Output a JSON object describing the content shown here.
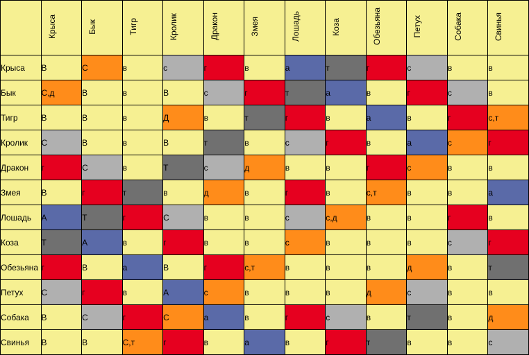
{
  "table": {
    "type": "heatmap",
    "row_headers": [
      "Крыса",
      "Бык",
      "Тигр",
      "Кролик",
      "Дракон",
      "Змея",
      "Лошадь",
      "Коза",
      "Обезьяна",
      "Петух",
      "Собака",
      "Свинья"
    ],
    "col_headers": [
      "Крыса",
      "Бык",
      "Тигр",
      "Кролик",
      "Дракон",
      "Змея",
      "Лошадь",
      "Коза",
      "Обезьяна",
      "Петух",
      "Собака",
      "Свинья"
    ],
    "header_bg": "#f6f092",
    "header_font_size": 13,
    "cell_font_size": 12,
    "border_color": "#000000",
    "colors": {
      "y": "#f6f092",
      "o": "#ff8c1a",
      "r": "#e6001f",
      "g": "#b0b0b0",
      "b": "#5a6aa8",
      "dg": "#707070"
    },
    "cells": [
      [
        [
          "В",
          "y"
        ],
        [
          "С",
          "o"
        ],
        [
          "в",
          "y"
        ],
        [
          "с",
          "g"
        ],
        [
          "г",
          "r"
        ],
        [
          "в",
          "y"
        ],
        [
          "а",
          "b"
        ],
        [
          "т",
          "dg"
        ],
        [
          "г",
          "r"
        ],
        [
          "с",
          "g"
        ],
        [
          "в",
          "y"
        ],
        [
          "в",
          "y"
        ]
      ],
      [
        [
          "С,д",
          "o"
        ],
        [
          "В",
          "y"
        ],
        [
          "в",
          "y"
        ],
        [
          "В",
          "y"
        ],
        [
          "с",
          "g"
        ],
        [
          "г",
          "r"
        ],
        [
          "т",
          "dg"
        ],
        [
          "а",
          "b"
        ],
        [
          "в",
          "y"
        ],
        [
          "г",
          "r"
        ],
        [
          "с",
          "g"
        ],
        [
          "в",
          "y"
        ]
      ],
      [
        [
          "В",
          "y"
        ],
        [
          "В",
          "y"
        ],
        [
          "в",
          "y"
        ],
        [
          "Д",
          "o"
        ],
        [
          "в",
          "y"
        ],
        [
          "т",
          "dg"
        ],
        [
          "г",
          "r"
        ],
        [
          "в",
          "y"
        ],
        [
          "а",
          "b"
        ],
        [
          "в",
          "y"
        ],
        [
          "г",
          "r"
        ],
        [
          "с,т",
          "o"
        ]
      ],
      [
        [
          "С",
          "g"
        ],
        [
          "В",
          "y"
        ],
        [
          "в",
          "y"
        ],
        [
          "В",
          "y"
        ],
        [
          "т",
          "dg"
        ],
        [
          "в",
          "y"
        ],
        [
          "с",
          "g"
        ],
        [
          "г",
          "r"
        ],
        [
          "в",
          "y"
        ],
        [
          "а",
          "b"
        ],
        [
          "с",
          "o"
        ],
        [
          "г",
          "r"
        ]
      ],
      [
        [
          "г",
          "r"
        ],
        [
          "С",
          "g"
        ],
        [
          "в",
          "y"
        ],
        [
          "Т",
          "dg"
        ],
        [
          "с",
          "g"
        ],
        [
          "д",
          "o"
        ],
        [
          "в",
          "y"
        ],
        [
          "в",
          "y"
        ],
        [
          "г",
          "r"
        ],
        [
          "с",
          "o"
        ],
        [
          "в",
          "y"
        ],
        [
          "в",
          "y"
        ]
      ],
      [
        [
          "В",
          "y"
        ],
        [
          "г",
          "r"
        ],
        [
          "т",
          "dg"
        ],
        [
          "в",
          "y"
        ],
        [
          "д",
          "o"
        ],
        [
          "в",
          "y"
        ],
        [
          "г",
          "r"
        ],
        [
          "в",
          "y"
        ],
        [
          "с,т",
          "o"
        ],
        [
          "в",
          "y"
        ],
        [
          "в",
          "y"
        ],
        [
          "а",
          "b"
        ]
      ],
      [
        [
          "А",
          "b"
        ],
        [
          "Т",
          "dg"
        ],
        [
          "г",
          "r"
        ],
        [
          "С",
          "g"
        ],
        [
          "в",
          "y"
        ],
        [
          "в",
          "y"
        ],
        [
          "с",
          "g"
        ],
        [
          "с,д",
          "o"
        ],
        [
          "в",
          "y"
        ],
        [
          "в",
          "y"
        ],
        [
          "г",
          "r"
        ],
        [
          "в",
          "y"
        ]
      ],
      [
        [
          "Т",
          "dg"
        ],
        [
          "А",
          "b"
        ],
        [
          "в",
          "y"
        ],
        [
          "г",
          "r"
        ],
        [
          "в",
          "y"
        ],
        [
          "в",
          "y"
        ],
        [
          "с",
          "o"
        ],
        [
          "в",
          "y"
        ],
        [
          "в",
          "y"
        ],
        [
          "в",
          "y"
        ],
        [
          "с",
          "g"
        ],
        [
          "г",
          "r"
        ]
      ],
      [
        [
          "г",
          "r"
        ],
        [
          "В",
          "y"
        ],
        [
          "а",
          "b"
        ],
        [
          "В",
          "y"
        ],
        [
          "г",
          "r"
        ],
        [
          "с,т",
          "o"
        ],
        [
          "в",
          "y"
        ],
        [
          "в",
          "y"
        ],
        [
          "в",
          "y"
        ],
        [
          "д",
          "o"
        ],
        [
          "в",
          "y"
        ],
        [
          "т",
          "dg"
        ]
      ],
      [
        [
          "С",
          "g"
        ],
        [
          "г",
          "r"
        ],
        [
          "в",
          "y"
        ],
        [
          "А",
          "b"
        ],
        [
          "с",
          "o"
        ],
        [
          "в",
          "y"
        ],
        [
          "в",
          "y"
        ],
        [
          "в",
          "y"
        ],
        [
          "д",
          "o"
        ],
        [
          "с",
          "g"
        ],
        [
          "в",
          "y"
        ],
        [
          "в",
          "y"
        ]
      ],
      [
        [
          "В",
          "y"
        ],
        [
          "С",
          "g"
        ],
        [
          "г",
          "r"
        ],
        [
          "С",
          "o"
        ],
        [
          "а",
          "b"
        ],
        [
          "в",
          "y"
        ],
        [
          "г",
          "r"
        ],
        [
          "с",
          "g"
        ],
        [
          "в",
          "y"
        ],
        [
          "т",
          "dg"
        ],
        [
          "в",
          "y"
        ],
        [
          "д",
          "o"
        ]
      ],
      [
        [
          "В",
          "y"
        ],
        [
          "В",
          "y"
        ],
        [
          "С,т",
          "o"
        ],
        [
          "г",
          "r"
        ],
        [
          "в",
          "y"
        ],
        [
          "а",
          "b"
        ],
        [
          "в",
          "y"
        ],
        [
          "г",
          "r"
        ],
        [
          "т",
          "dg"
        ],
        [
          "в",
          "y"
        ],
        [
          "в",
          "y"
        ],
        [
          "с",
          "g"
        ]
      ]
    ]
  }
}
